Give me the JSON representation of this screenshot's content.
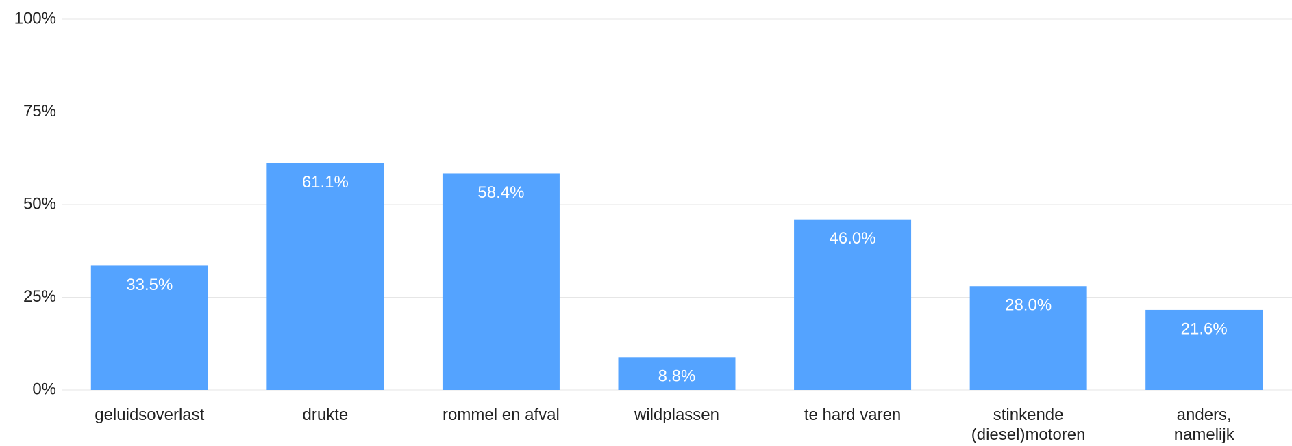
{
  "chart_data": {
    "type": "bar",
    "categories": [
      "geluidsoverlast",
      "drukte",
      "rommel en afval",
      "wildplassen",
      "te hard varen",
      "stinkende\n(diesel)motoren",
      "anders,\nnamelijk"
    ],
    "values": [
      33.5,
      61.1,
      58.4,
      8.8,
      46.0,
      28.0,
      21.6
    ],
    "value_labels": [
      "33.5%",
      "61.1%",
      "58.4%",
      "8.8%",
      "46.0%",
      "28.0%",
      "21.6%"
    ],
    "color": "#54a3ff",
    "ylim": [
      0,
      100
    ],
    "yticks": [
      {
        "value": 0,
        "label": "0%"
      },
      {
        "value": 25,
        "label": "25%"
      },
      {
        "value": 50,
        "label": "50%"
      },
      {
        "value": 75,
        "label": "75%"
      },
      {
        "value": 100,
        "label": "100%"
      }
    ],
    "grid": true
  }
}
